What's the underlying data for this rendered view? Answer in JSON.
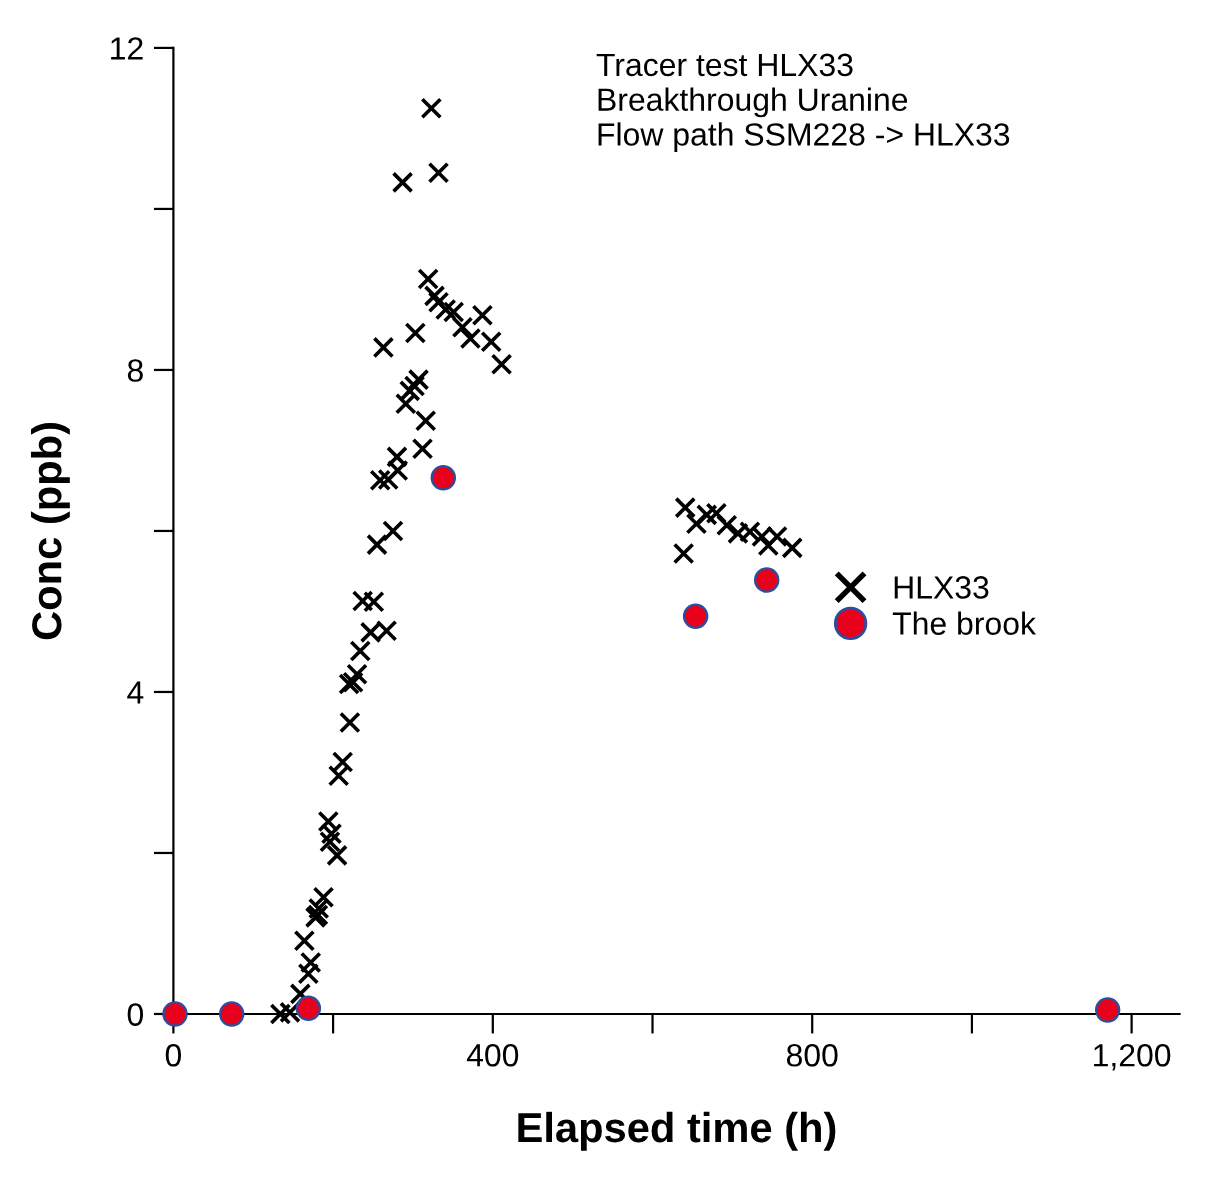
{
  "chart_data": {
    "type": "scatter",
    "xlabel": "Elapsed time (h)",
    "ylabel": "Conc (ppb)",
    "annotations": [
      "Tracer test HLX33",
      "Breakthrough Uranine",
      "Flow path SSM228 -> HLX33"
    ],
    "xlim": [
      0,
      1260
    ],
    "ylim": [
      0,
      12
    ],
    "xticks": [
      0,
      {
        "value": 200,
        "label": null
      },
      400,
      {
        "value": 600,
        "label": null
      },
      800,
      {
        "value": 1000,
        "label": null
      },
      {
        "value": 1200,
        "label": "1,200"
      }
    ],
    "yticks": [
      0,
      {
        "value": 2,
        "label": null
      },
      4,
      {
        "value": 6,
        "label": null
      },
      8,
      {
        "value": 10,
        "label": null
      },
      12
    ],
    "grid": false,
    "legend": "right",
    "series": [
      {
        "name": "HLX33",
        "color": "#000000",
        "marker": "cross",
        "x": [
          134,
          146,
          159,
          169,
          172,
          164,
          178,
          181,
          188,
          182,
          194,
          198,
          196,
          205,
          207,
          212,
          221,
          220,
          225,
          230,
          234,
          247,
          267,
          237,
          251,
          255,
          275,
          259,
          269,
          281,
          280,
          312,
          316,
          291,
          296,
          302,
          307,
          263,
          303,
          319,
          327,
          332,
          341,
          351,
          362,
          387,
          372,
          398,
          411,
          287,
          323,
          332,
          641,
          655,
          668,
          680,
          693,
          707,
          722,
          737,
          745,
          756,
          775,
          639
        ],
        "values": [
          0,
          0.02,
          0.25,
          0.5,
          0.64,
          0.91,
          1.2,
          1.23,
          1.45,
          1.31,
          2.39,
          2.24,
          2.14,
          1.97,
          2.96,
          3.13,
          3.62,
          4.1,
          4.12,
          4.22,
          4.51,
          4.74,
          4.76,
          5.13,
          5.12,
          5.83,
          6.0,
          6.63,
          6.64,
          6.75,
          6.92,
          7.02,
          7.37,
          7.58,
          7.74,
          7.8,
          7.88,
          8.28,
          8.46,
          9.13,
          8.92,
          8.84,
          8.75,
          8.72,
          8.53,
          8.68,
          8.39,
          8.35,
          8.07,
          10.33,
          11.25,
          10.45,
          6.29,
          6.09,
          6.2,
          6.22,
          6.07,
          5.97,
          5.99,
          5.93,
          5.82,
          5.93,
          5.79,
          5.72
        ]
      },
      {
        "name": "The brook",
        "color": "#e8001c",
        "marker": "circle",
        "x": [
          2,
          73,
          169,
          338,
          654,
          743,
          1170
        ],
        "values": [
          0,
          0,
          0.07,
          6.66,
          4.94,
          5.39,
          0.05
        ]
      }
    ]
  }
}
